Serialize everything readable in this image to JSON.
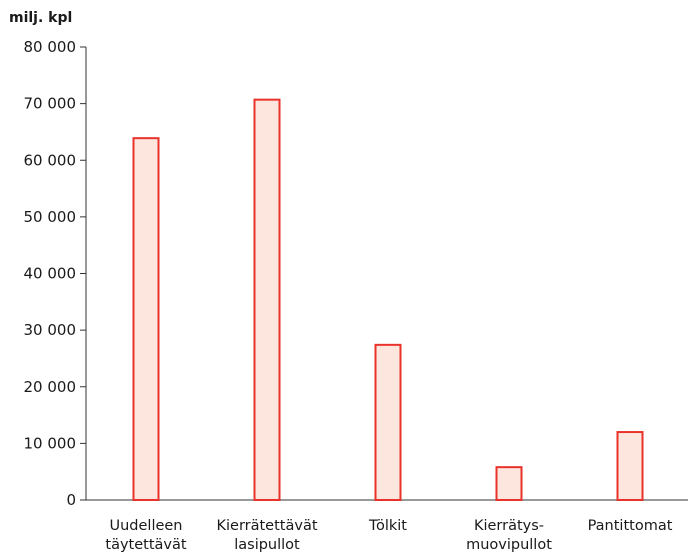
{
  "chart_data": {
    "type": "bar",
    "unit_label": "milj. kpl",
    "categories": [
      [
        "Uudelleen",
        "täytettävät"
      ],
      [
        "Kierrätettävät",
        "lasipullot"
      ],
      [
        "Tölkit"
      ],
      [
        "Kierrätys-",
        "muovipullot"
      ],
      [
        "Pantittomat"
      ]
    ],
    "values": [
      63900,
      70700,
      27400,
      5800,
      12000
    ],
    "ylim": [
      0,
      80000
    ],
    "yticks": [
      0,
      10000,
      20000,
      30000,
      40000,
      50000,
      60000,
      70000,
      80000
    ],
    "ytick_labels": [
      "0",
      "10 000",
      "20 000",
      "30 000",
      "40 000",
      "50 000",
      "60 000",
      "70 000",
      "80 000"
    ],
    "grid": false,
    "colors": {
      "bar_fill": "#fde6de",
      "bar_stroke": "#e8322a",
      "axis": "#333333"
    }
  }
}
